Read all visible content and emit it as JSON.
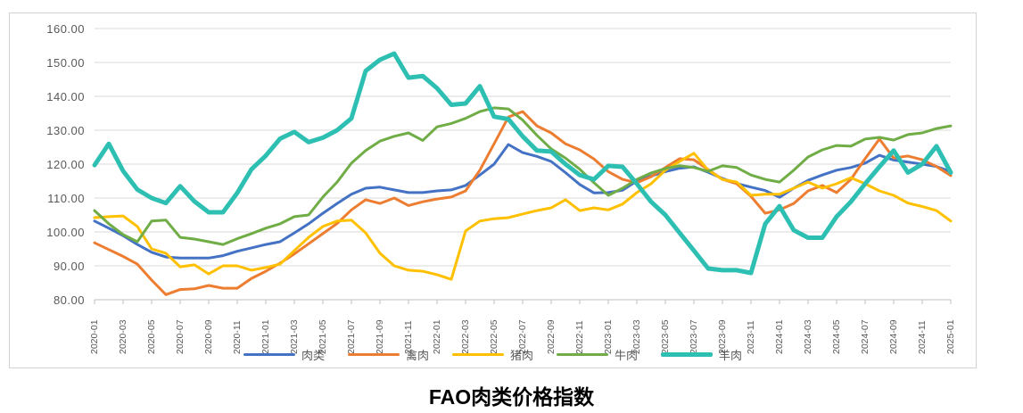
{
  "page": {
    "title": "FAO肉类价格指数"
  },
  "chart_data": {
    "type": "line",
    "title": "FAO肉类价格指数",
    "xlabel": "",
    "ylabel": "",
    "ylim": [
      80,
      160
    ],
    "ytick_step": 10,
    "y_tick_labels": [
      "160.00",
      "150.00",
      "140.00",
      "130.00",
      "120.00",
      "110.00",
      "100.00",
      "90.00",
      "80.00"
    ],
    "x_label_every": 2,
    "grid": true,
    "legend_position": "bottom",
    "grid_color": "#d9d9d9",
    "axis_line_color": "#bfbfbf",
    "tick_text_color": "#595959",
    "x": [
      "2020-01",
      "2020-02",
      "2020-03",
      "2020-04",
      "2020-05",
      "2020-06",
      "2020-07",
      "2020-08",
      "2020-09",
      "2020-10",
      "2020-11",
      "2020-12",
      "2021-01",
      "2021-02",
      "2021-03",
      "2021-04",
      "2021-05",
      "2021-06",
      "2021-07",
      "2021-08",
      "2021-09",
      "2021-10",
      "2021-11",
      "2021-12",
      "2022-01",
      "2022-02",
      "2022-03",
      "2022-04",
      "2022-05",
      "2022-06",
      "2022-07",
      "2022-08",
      "2022-09",
      "2022-10",
      "2022-11",
      "2022-12",
      "2023-01",
      "2023-02",
      "2023-03",
      "2023-04",
      "2023-05",
      "2023-06",
      "2023-07",
      "2023-08",
      "2023-09",
      "2023-10",
      "2023-11",
      "2023-12",
      "2024-01",
      "2024-02",
      "2024-03",
      "2024-04",
      "2024-05",
      "2024-06",
      "2024-07",
      "2024-08",
      "2024-09",
      "2024-10",
      "2024-11",
      "2024-12",
      "2025-01"
    ],
    "series": [
      {
        "name": "肉类",
        "color": "#4472C4",
        "stroke_width": 3,
        "values": [
          103.2,
          101.1,
          98.9,
          96.3,
          94.0,
          92.6,
          92.3,
          92.3,
          92.3,
          93.0,
          94.3,
          95.3,
          96.3,
          97.1,
          99.7,
          102.4,
          105.5,
          108.4,
          111.1,
          112.9,
          113.2,
          112.4,
          111.6,
          111.6,
          112.1,
          112.4,
          113.7,
          116.8,
          120.0,
          125.8,
          123.4,
          122.3,
          120.8,
          117.5,
          114.0,
          111.5,
          111.6,
          112.3,
          115.0,
          116.5,
          117.8,
          118.8,
          119.2,
          117.6,
          115.8,
          114.3,
          113.2,
          112.2,
          110.2,
          112.9,
          115.2,
          116.8,
          118.2,
          119.0,
          120.3,
          122.6,
          121.2,
          120.6,
          120.0,
          119.3,
          117.8
        ]
      },
      {
        "name": "禽肉",
        "color": "#ED7D31",
        "stroke_width": 3,
        "values": [
          96.8,
          94.8,
          92.8,
          90.5,
          85.8,
          81.5,
          83.0,
          83.2,
          84.2,
          83.4,
          83.4,
          86.3,
          88.4,
          90.8,
          93.5,
          96.5,
          99.5,
          102.5,
          106.5,
          109.5,
          108.4,
          110.0,
          107.8,
          108.9,
          109.7,
          110.3,
          112.1,
          118.2,
          126.0,
          133.9,
          135.5,
          131.3,
          129.2,
          126.0,
          124.2,
          121.5,
          117.8,
          115.5,
          114.5,
          116.3,
          119.0,
          121.6,
          121.3,
          118.4,
          115.5,
          114.2,
          110.5,
          105.5,
          106.5,
          108.4,
          112.1,
          113.7,
          111.6,
          115.5,
          121.6,
          127.4,
          121.8,
          122.4,
          121.3,
          119.3,
          116.6
        ]
      },
      {
        "name": "猪肉",
        "color": "#FFC000",
        "stroke_width": 3,
        "values": [
          104.2,
          104.5,
          104.7,
          101.6,
          95.0,
          93.7,
          89.7,
          90.3,
          87.6,
          90.0,
          90.0,
          88.7,
          89.5,
          90.5,
          94.5,
          98.4,
          101.6,
          103.2,
          103.5,
          99.7,
          93.7,
          90.0,
          88.7,
          88.4,
          87.4,
          86.0,
          100.3,
          103.2,
          103.9,
          104.2,
          105.3,
          106.3,
          107.1,
          109.5,
          106.3,
          107.1,
          106.5,
          108.2,
          111.6,
          114.2,
          118.2,
          120.8,
          123.2,
          118.2,
          115.5,
          114.7,
          110.8,
          111.1,
          111.1,
          112.9,
          114.7,
          112.9,
          114.2,
          116.0,
          114.2,
          112.1,
          110.8,
          108.5,
          107.5,
          106.3,
          103.2
        ]
      },
      {
        "name": "牛肉",
        "color": "#70AD47",
        "stroke_width": 3,
        "values": [
          106.3,
          102.4,
          99.2,
          97.1,
          103.2,
          103.5,
          98.4,
          97.9,
          97.1,
          96.3,
          98.0,
          99.5,
          101.1,
          102.4,
          104.5,
          105.0,
          110.3,
          114.7,
          120.3,
          124.0,
          126.8,
          128.2,
          129.2,
          127.0,
          131.0,
          132.0,
          133.5,
          135.5,
          136.6,
          136.3,
          133.0,
          128.5,
          124.5,
          121.8,
          118.5,
          114.5,
          110.8,
          112.9,
          115.5,
          117.4,
          118.7,
          119.5,
          119.0,
          117.9,
          119.5,
          119.0,
          116.8,
          115.5,
          114.7,
          118.2,
          122.1,
          124.2,
          125.5,
          125.3,
          127.4,
          127.9,
          127.1,
          128.7,
          129.2,
          130.5,
          131.3
        ]
      },
      {
        "name": "羊肉",
        "color": "#2EBFB3",
        "stroke_width": 5,
        "values": [
          119.7,
          126.0,
          118.0,
          112.5,
          110.0,
          108.5,
          113.5,
          109.0,
          105.8,
          105.8,
          111.5,
          118.5,
          122.5,
          127.5,
          129.5,
          126.5,
          127.8,
          130.0,
          133.5,
          147.5,
          150.8,
          152.6,
          145.5,
          146.0,
          142.4,
          137.5,
          137.9,
          143.0,
          134.0,
          133.3,
          128.2,
          124.0,
          123.7,
          120.0,
          116.8,
          115.5,
          119.5,
          119.2,
          114.2,
          108.9,
          105.0,
          99.7,
          94.5,
          89.2,
          88.7,
          88.7,
          87.9,
          102.4,
          107.6,
          100.5,
          98.3,
          98.3,
          104.5,
          108.9,
          114.2,
          119.2,
          124.0,
          117.5,
          120.0,
          125.3,
          117.5
        ]
      }
    ]
  }
}
